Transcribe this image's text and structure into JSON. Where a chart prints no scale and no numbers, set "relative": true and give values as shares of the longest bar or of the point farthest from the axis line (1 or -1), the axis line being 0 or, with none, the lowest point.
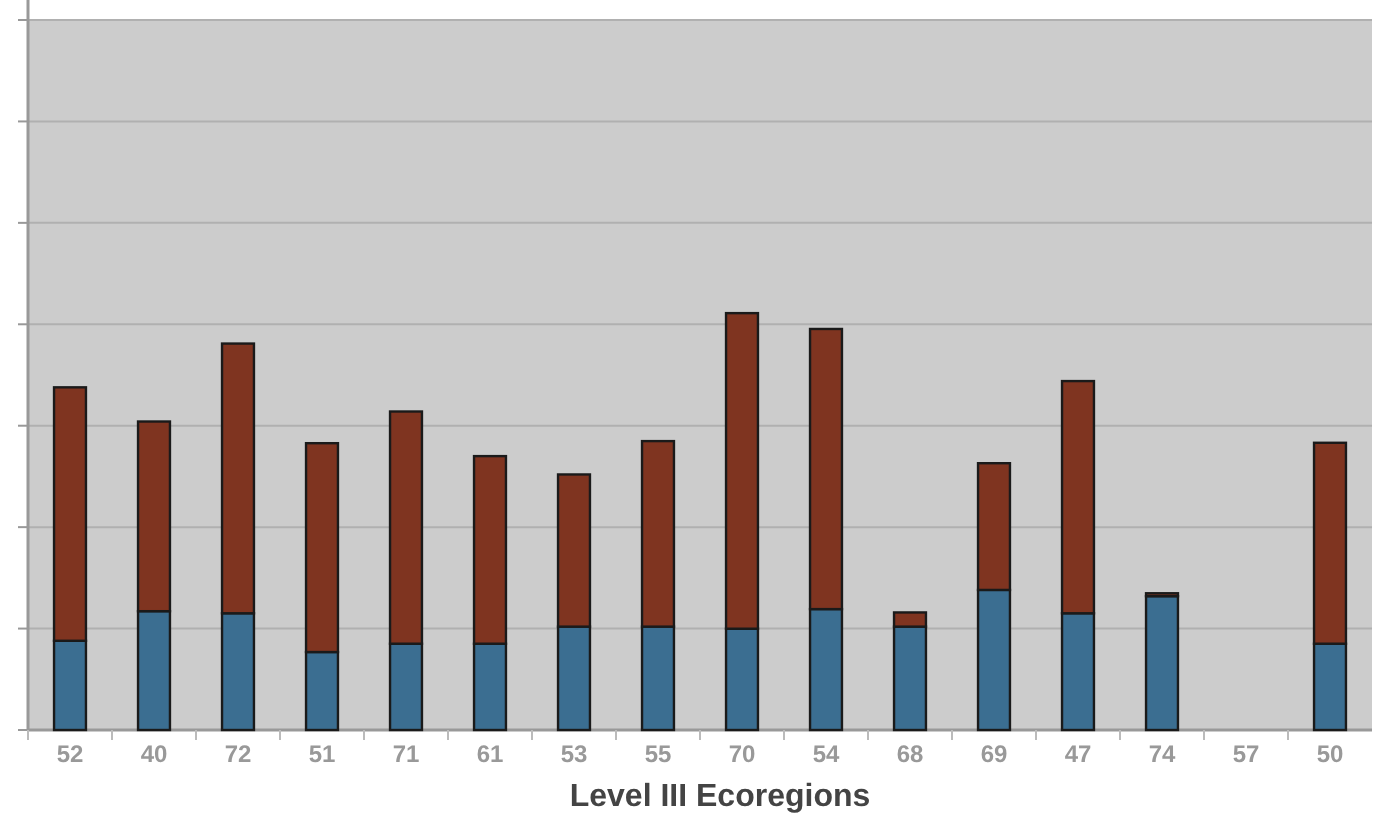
{
  "chart_data": {
    "type": "bar",
    "stacked": true,
    "relative": true,
    "grid": true,
    "xlabel": "Level III Ecoregions",
    "categories": [
      "52",
      "40",
      "72",
      "51",
      "71",
      "61",
      "53",
      "55",
      "70",
      "54",
      "68",
      "69",
      "47",
      "74",
      "57",
      "50"
    ],
    "series": [
      {
        "color": "#3b6e91",
        "values": [
          0.214,
          0.285,
          0.28,
          0.187,
          0.207,
          0.207,
          0.248,
          0.248,
          0.243,
          0.29,
          0.248,
          0.336,
          0.28,
          0.321,
          0,
          0.207
        ]
      },
      {
        "color": "#7f3420",
        "values": [
          0.608,
          0.455,
          0.647,
          0.501,
          0.557,
          0.45,
          0.365,
          0.445,
          0.757,
          0.672,
          0.034,
          0.304,
          0.557,
          0.007,
          0,
          0.482
        ]
      }
    ]
  }
}
